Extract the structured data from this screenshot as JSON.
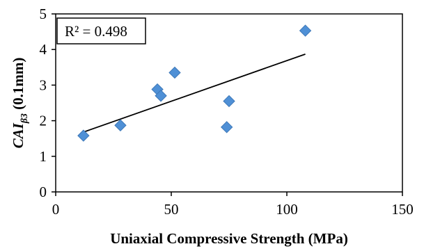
{
  "chart_data": {
    "type": "scatter",
    "xlabel": "Uniaxial Compressive Strength (MPa)",
    "ylabel": {
      "main": "CAI",
      "sub": "β3",
      "rest": " (0.1mm)"
    },
    "xlim": [
      0,
      150
    ],
    "ylim": [
      0,
      5
    ],
    "x_ticks": [
      0,
      50,
      100,
      150
    ],
    "y_ticks": [
      0,
      1,
      2,
      3,
      4,
      5
    ],
    "grid": false,
    "marker_color": "#4f90d6",
    "marker_edge_color": "#3e78b8",
    "marker": "diamond",
    "points": [
      {
        "x": 12,
        "y": 1.58
      },
      {
        "x": 28,
        "y": 1.87
      },
      {
        "x": 44,
        "y": 2.88
      },
      {
        "x": 45.5,
        "y": 2.7
      },
      {
        "x": 51.5,
        "y": 3.35
      },
      {
        "x": 74,
        "y": 1.82
      },
      {
        "x": 75,
        "y": 2.55
      },
      {
        "x": 108,
        "y": 4.53
      }
    ],
    "trendline": {
      "x": [
        12,
        108
      ],
      "y": [
        1.68,
        3.87
      ],
      "color": "#000000"
    },
    "annotation": {
      "text": "R² = 0.498"
    }
  }
}
